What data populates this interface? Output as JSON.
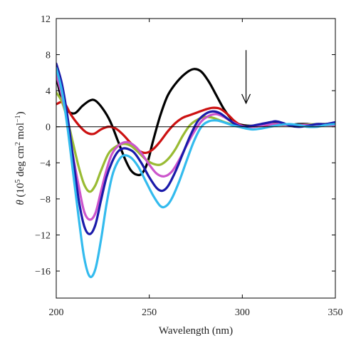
{
  "chart_data": {
    "type": "line",
    "xlabel": "Wavelength (nm)",
    "ylabel_parts": {
      "symbol": "θ",
      "open": " (10",
      "exp1": "5",
      "mid": " deg cm",
      "exp2": "2",
      "unit": " mol",
      "exp3": "−1",
      "close": ")"
    },
    "xlim": [
      200,
      350
    ],
    "ylim": [
      -19,
      12
    ],
    "xticks": [
      200,
      250,
      300,
      350
    ],
    "yticks": [
      12,
      8,
      4,
      0,
      -4,
      -8,
      -12,
      -16
    ],
    "ytick_labels": [
      "12",
      "8",
      "4",
      "0",
      "−4",
      "−8",
      "−12",
      "−16"
    ],
    "grid": false,
    "zero_line": true,
    "annotation": {
      "type": "downward-arrow",
      "x": 302,
      "y_from": 8.5,
      "y_to": 2.6
    },
    "series": [
      {
        "color": "#000000",
        "points": [
          [
            200,
            5.5
          ],
          [
            203,
            3.0
          ],
          [
            206,
            1.8
          ],
          [
            210,
            1.5
          ],
          [
            214,
            2.3
          ],
          [
            218,
            2.9
          ],
          [
            221,
            2.9
          ],
          [
            225,
            2.0
          ],
          [
            229,
            0.6
          ],
          [
            233,
            -1.5
          ],
          [
            237,
            -3.6
          ],
          [
            240,
            -4.8
          ],
          [
            243,
            -5.3
          ],
          [
            246,
            -5.2
          ],
          [
            249,
            -4.0
          ],
          [
            252,
            -1.6
          ],
          [
            256,
            1.3
          ],
          [
            260,
            3.5
          ],
          [
            265,
            5.0
          ],
          [
            270,
            6.0
          ],
          [
            274,
            6.4
          ],
          [
            278,
            6.1
          ],
          [
            282,
            5.0
          ],
          [
            286,
            3.5
          ],
          [
            290,
            2.0
          ],
          [
            294,
            0.9
          ],
          [
            298,
            0.3
          ],
          [
            305,
            0.1
          ],
          [
            310,
            0.2
          ],
          [
            315,
            0.5
          ],
          [
            320,
            0.4
          ],
          [
            325,
            0.2
          ],
          [
            330,
            0.3
          ],
          [
            335,
            0.3
          ],
          [
            340,
            0.2
          ],
          [
            345,
            0.3
          ],
          [
            350,
            0.4
          ]
        ]
      },
      {
        "color": "#cc1111",
        "points": [
          [
            200,
            2.5
          ],
          [
            204,
            2.7
          ],
          [
            208,
            1.3
          ],
          [
            212,
            0.2
          ],
          [
            216,
            -0.6
          ],
          [
            220,
            -0.8
          ],
          [
            224,
            -0.3
          ],
          [
            228,
            0.0
          ],
          [
            232,
            -0.2
          ],
          [
            236,
            -0.9
          ],
          [
            240,
            -1.8
          ],
          [
            244,
            -2.6
          ],
          [
            248,
            -2.9
          ],
          [
            252,
            -2.5
          ],
          [
            256,
            -1.6
          ],
          [
            260,
            -0.5
          ],
          [
            264,
            0.4
          ],
          [
            268,
            1.0
          ],
          [
            272,
            1.3
          ],
          [
            276,
            1.6
          ],
          [
            280,
            1.9
          ],
          [
            284,
            2.1
          ],
          [
            288,
            2.0
          ],
          [
            292,
            1.4
          ],
          [
            296,
            0.6
          ],
          [
            300,
            0.1
          ],
          [
            305,
            0.0
          ],
          [
            310,
            0.1
          ],
          [
            315,
            0.2
          ],
          [
            320,
            0.2
          ],
          [
            330,
            0.2
          ],
          [
            340,
            0.2
          ],
          [
            350,
            0.2
          ]
        ]
      },
      {
        "color": "#99bb33",
        "points": [
          [
            200,
            3.8
          ],
          [
            203,
            2.8
          ],
          [
            206,
            0.8
          ],
          [
            209,
            -1.8
          ],
          [
            212,
            -4.4
          ],
          [
            215,
            -6.4
          ],
          [
            218,
            -7.2
          ],
          [
            221,
            -6.5
          ],
          [
            224,
            -4.9
          ],
          [
            228,
            -3.0
          ],
          [
            232,
            -2.2
          ],
          [
            236,
            -1.9
          ],
          [
            240,
            -2.1
          ],
          [
            244,
            -2.8
          ],
          [
            248,
            -3.6
          ],
          [
            252,
            -4.1
          ],
          [
            256,
            -4.2
          ],
          [
            260,
            -3.6
          ],
          [
            264,
            -2.5
          ],
          [
            268,
            -1.0
          ],
          [
            272,
            0.2
          ],
          [
            276,
            0.8
          ],
          [
            280,
            1.1
          ],
          [
            284,
            1.0
          ],
          [
            288,
            0.7
          ],
          [
            292,
            0.4
          ],
          [
            296,
            0.2
          ],
          [
            300,
            0.0
          ],
          [
            305,
            0.1
          ],
          [
            310,
            0.2
          ],
          [
            315,
            0.3
          ],
          [
            320,
            0.3
          ],
          [
            330,
            0.2
          ],
          [
            340,
            0.3
          ],
          [
            350,
            0.3
          ]
        ]
      },
      {
        "color": "#cc55cc",
        "points": [
          [
            200,
            5.8
          ],
          [
            203,
            3.5
          ],
          [
            206,
            0.5
          ],
          [
            209,
            -3.2
          ],
          [
            212,
            -6.5
          ],
          [
            215,
            -9.4
          ],
          [
            218,
            -10.3
          ],
          [
            221,
            -9.6
          ],
          [
            224,
            -7.2
          ],
          [
            227,
            -4.8
          ],
          [
            230,
            -3.0
          ],
          [
            234,
            -2.0
          ],
          [
            238,
            -1.7
          ],
          [
            242,
            -2.1
          ],
          [
            246,
            -3.0
          ],
          [
            250,
            -4.2
          ],
          [
            254,
            -5.2
          ],
          [
            258,
            -5.5
          ],
          [
            262,
            -5.0
          ],
          [
            266,
            -3.7
          ],
          [
            270,
            -2.1
          ],
          [
            274,
            -0.6
          ],
          [
            278,
            0.6
          ],
          [
            282,
            1.2
          ],
          [
            286,
            1.4
          ],
          [
            290,
            1.1
          ],
          [
            294,
            0.6
          ],
          [
            298,
            0.2
          ],
          [
            302,
            0.0
          ],
          [
            306,
            0.0
          ],
          [
            312,
            0.2
          ],
          [
            318,
            0.3
          ],
          [
            325,
            0.2
          ],
          [
            335,
            0.2
          ],
          [
            345,
            0.2
          ],
          [
            350,
            0.2
          ]
        ]
      },
      {
        "color": "#1a1aaa",
        "points": [
          [
            200,
            7.0
          ],
          [
            203,
            4.8
          ],
          [
            206,
            1.2
          ],
          [
            209,
            -3.4
          ],
          [
            212,
            -8.0
          ],
          [
            215,
            -11.0
          ],
          [
            218,
            -11.9
          ],
          [
            221,
            -10.9
          ],
          [
            224,
            -8.2
          ],
          [
            227,
            -5.6
          ],
          [
            230,
            -3.9
          ],
          [
            233,
            -2.8
          ],
          [
            236,
            -2.4
          ],
          [
            239,
            -2.5
          ],
          [
            242,
            -2.9
          ],
          [
            246,
            -4.1
          ],
          [
            250,
            -5.6
          ],
          [
            254,
            -6.8
          ],
          [
            257,
            -7.1
          ],
          [
            260,
            -6.6
          ],
          [
            264,
            -5.0
          ],
          [
            268,
            -3.0
          ],
          [
            272,
            -1.0
          ],
          [
            276,
            0.6
          ],
          [
            280,
            1.4
          ],
          [
            284,
            1.7
          ],
          [
            288,
            1.5
          ],
          [
            292,
            0.9
          ],
          [
            296,
            0.3
          ],
          [
            300,
            0.0
          ],
          [
            305,
            0.1
          ],
          [
            310,
            0.3
          ],
          [
            315,
            0.5
          ],
          [
            318,
            0.6
          ],
          [
            322,
            0.4
          ],
          [
            326,
            0.1
          ],
          [
            330,
            0.0
          ],
          [
            335,
            0.1
          ],
          [
            340,
            0.3
          ],
          [
            345,
            0.3
          ],
          [
            350,
            0.5
          ]
        ]
      },
      {
        "color": "#33bbee",
        "points": [
          [
            200,
            6.5
          ],
          [
            203,
            4.0
          ],
          [
            206,
            0.0
          ],
          [
            209,
            -5.0
          ],
          [
            212,
            -10.0
          ],
          [
            215,
            -14.5
          ],
          [
            218,
            -16.6
          ],
          [
            221,
            -15.8
          ],
          [
            224,
            -12.6
          ],
          [
            227,
            -8.6
          ],
          [
            230,
            -5.5
          ],
          [
            233,
            -3.9
          ],
          [
            236,
            -3.2
          ],
          [
            240,
            -3.4
          ],
          [
            244,
            -4.4
          ],
          [
            248,
            -6.0
          ],
          [
            252,
            -7.6
          ],
          [
            256,
            -8.8
          ],
          [
            259,
            -8.8
          ],
          [
            262,
            -8.0
          ],
          [
            266,
            -6.1
          ],
          [
            270,
            -3.8
          ],
          [
            274,
            -1.6
          ],
          [
            278,
            0.0
          ],
          [
            282,
            0.6
          ],
          [
            286,
            0.7
          ],
          [
            290,
            0.5
          ],
          [
            294,
            0.2
          ],
          [
            298,
            0.0
          ],
          [
            302,
            -0.2
          ],
          [
            306,
            -0.3
          ],
          [
            310,
            -0.2
          ],
          [
            315,
            0.0
          ],
          [
            320,
            0.2
          ],
          [
            325,
            0.3
          ],
          [
            330,
            0.2
          ],
          [
            335,
            0.0
          ],
          [
            340,
            0.0
          ],
          [
            345,
            0.2
          ],
          [
            350,
            0.3
          ]
        ]
      }
    ]
  }
}
